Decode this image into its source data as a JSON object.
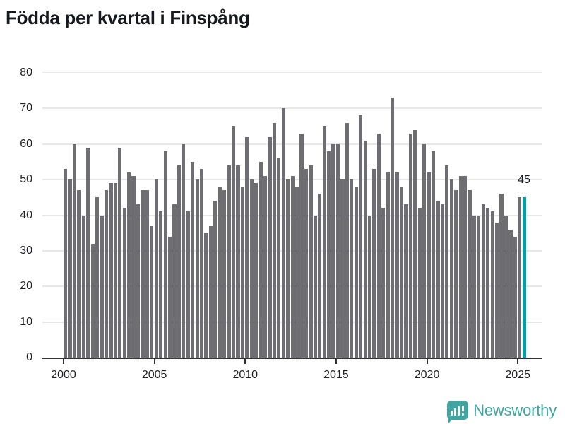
{
  "title": "Födda per kvartal i Finspång",
  "logo": {
    "text": "Newsworthy"
  },
  "colors": {
    "bar": "#6e6e72",
    "highlight": "#009fa4",
    "grid": "#e7e7e7",
    "axis": "#333337",
    "text": "#202124",
    "title": "#15181c",
    "logo_teal": "#41a6a2"
  },
  "chart_data": {
    "type": "bar",
    "title": "Födda per kvartal i Finspång",
    "x_start": "2000 Q1",
    "x_end": "2025 Q2",
    "x_tick_labels": [
      "2000",
      "2005",
      "2010",
      "2015",
      "2020",
      "2025"
    ],
    "y_tick_labels": [
      "0",
      "10",
      "20",
      "30",
      "40",
      "50",
      "60",
      "70",
      "80"
    ],
    "y_ticks": [
      0,
      10,
      20,
      30,
      40,
      50,
      60,
      70,
      80
    ],
    "ylim": [
      0,
      80
    ],
    "grid": true,
    "legend": false,
    "values": [
      53,
      50,
      60,
      47,
      40,
      59,
      32,
      45,
      40,
      47,
      49,
      49,
      59,
      42,
      52,
      51,
      43,
      47,
      47,
      37,
      50,
      41,
      58,
      34,
      43,
      54,
      60,
      41,
      55,
      50,
      53,
      35,
      37,
      44,
      48,
      47,
      54,
      65,
      54,
      48,
      62,
      50,
      49,
      55,
      51,
      62,
      66,
      56,
      70,
      50,
      51,
      48,
      63,
      53,
      54,
      40,
      46,
      65,
      58,
      60,
      60,
      50,
      66,
      50,
      48,
      68,
      61,
      40,
      53,
      63,
      42,
      52,
      73,
      52,
      48,
      43,
      63,
      64,
      42,
      60,
      52,
      58,
      44,
      43,
      54,
      50,
      47,
      51,
      51,
      47,
      40,
      40,
      43,
      42,
      41,
      38,
      46,
      40,
      36,
      34,
      45,
      45
    ],
    "highlight_last_bar": true,
    "last_label": "45"
  }
}
